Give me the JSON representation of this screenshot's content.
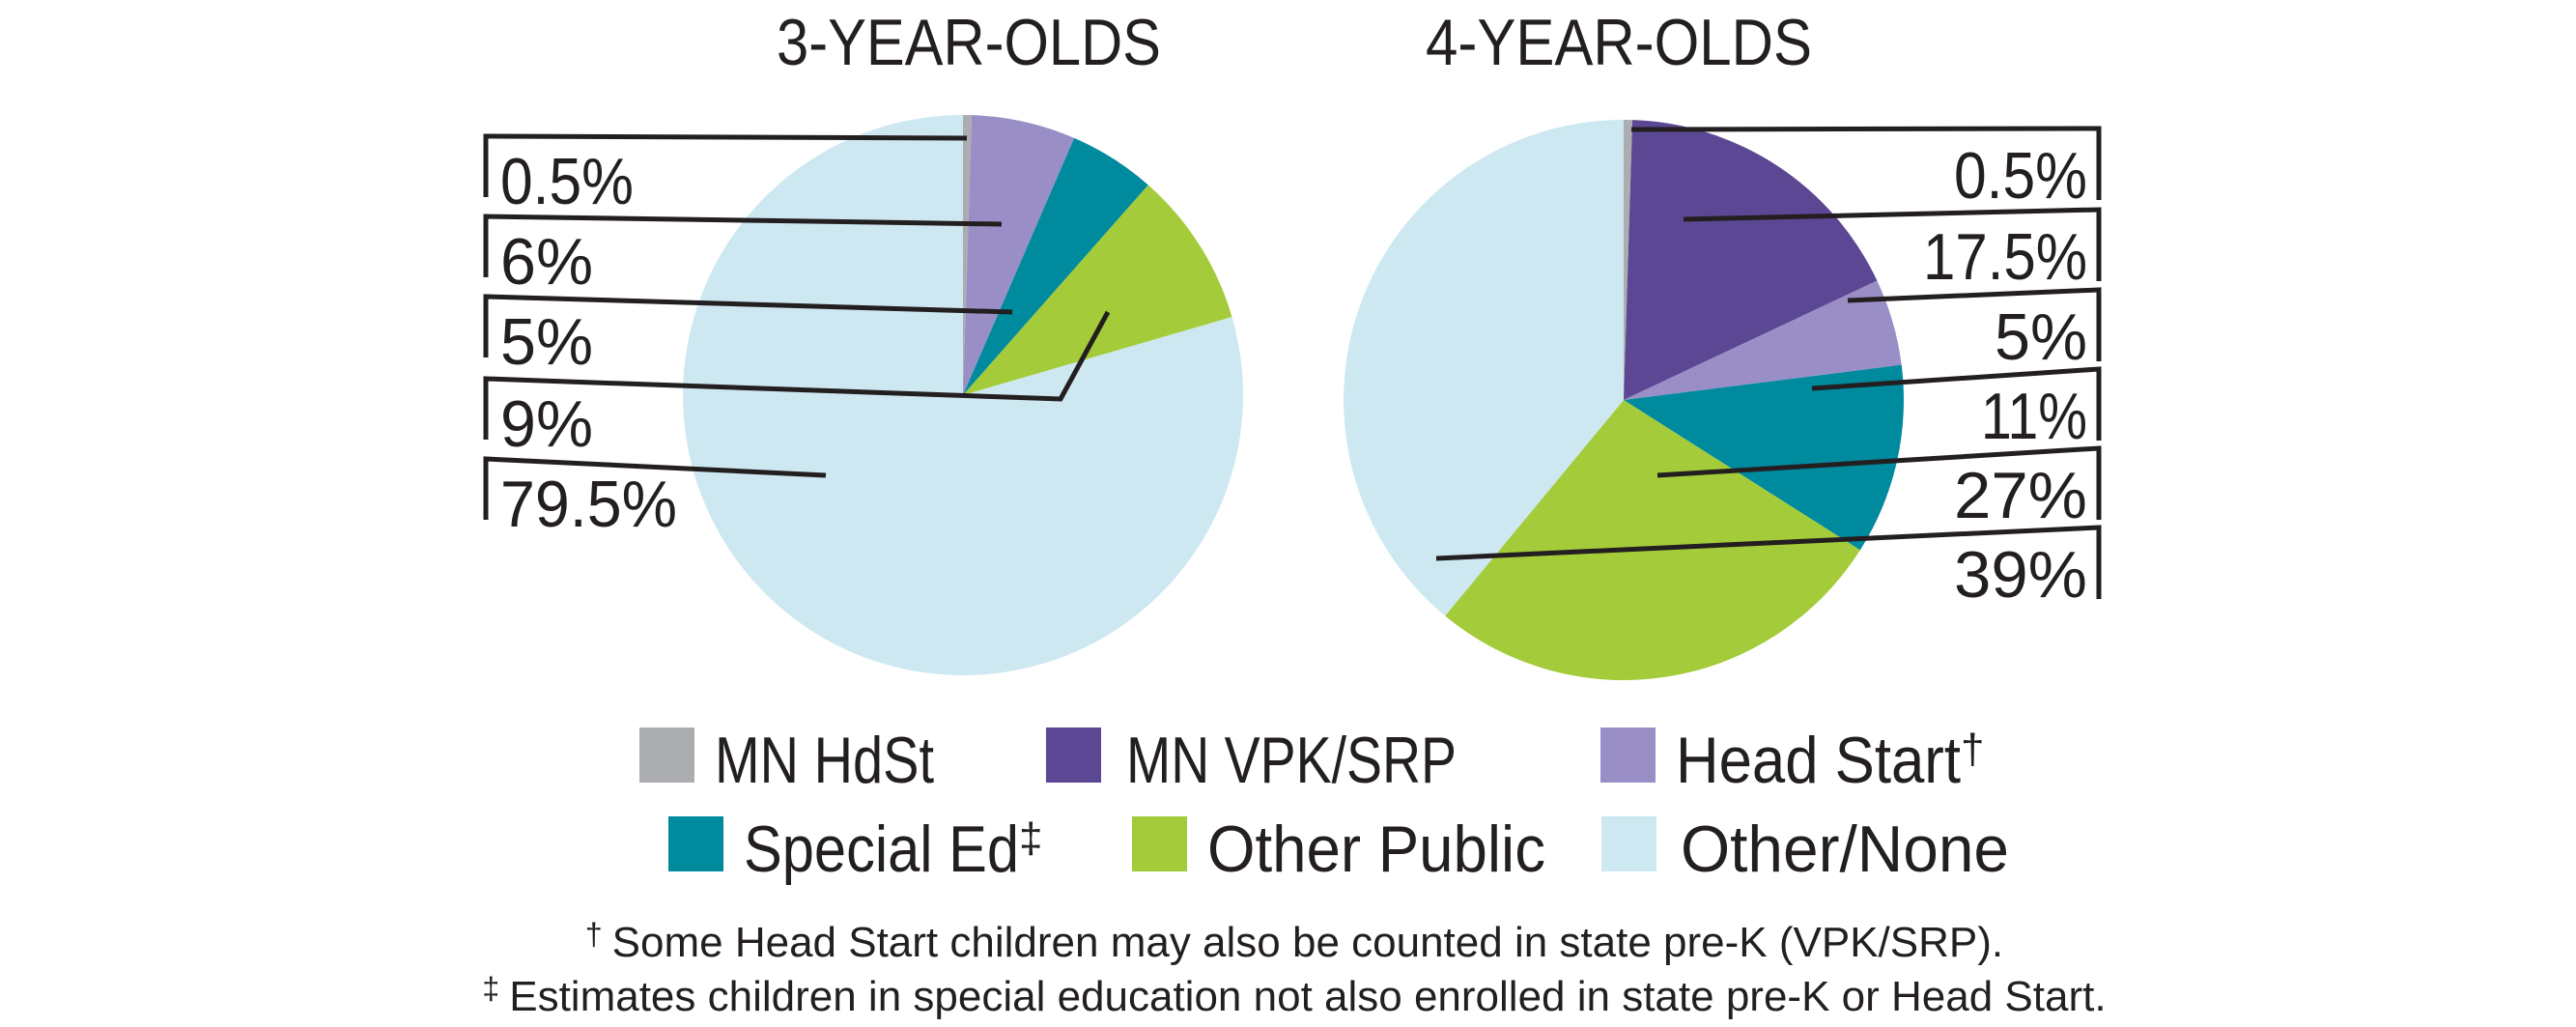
{
  "figure": {
    "background": "#ffffff",
    "text_color": "#231f20",
    "line_color": "#231f20"
  },
  "chart_data": [
    {
      "type": "pie",
      "title": "3-YEAR-OLDS",
      "unit": "percent",
      "start_angle_deg": 0,
      "direction": "clockwise",
      "legend_position": "bottom",
      "slices": [
        {
          "label": "MN HdSt",
          "value": 0.5,
          "display": "0.5%",
          "color": "#acadb0"
        },
        {
          "label": "Head Start",
          "value": 6,
          "display": "6%",
          "color": "#998fc6"
        },
        {
          "label": "Special Ed",
          "value": 5,
          "display": "5%",
          "color": "#008a9e"
        },
        {
          "label": "Other Public",
          "value": 9,
          "display": "9%",
          "color": "#a4cb39"
        },
        {
          "label": "Other/None",
          "value": 79.5,
          "display": "79.5%",
          "color": "#cde8f1"
        }
      ]
    },
    {
      "type": "pie",
      "title": "4-YEAR-OLDS",
      "unit": "percent",
      "start_angle_deg": 0,
      "direction": "clockwise",
      "legend_position": "bottom",
      "slices": [
        {
          "label": "MN HdSt",
          "value": 0.5,
          "display": "0.5%",
          "color": "#acadb0"
        },
        {
          "label": "MN VPK/SRP",
          "value": 17.5,
          "display": "17.5%",
          "color": "#5b4793"
        },
        {
          "label": "Head Start",
          "value": 5,
          "display": "5%",
          "color": "#998fc6"
        },
        {
          "label": "Special Ed",
          "value": 11,
          "display": "11%",
          "color": "#008a9e"
        },
        {
          "label": "Other Public",
          "value": 27,
          "display": "27%",
          "color": "#a4cb39"
        },
        {
          "label": "Other/None",
          "value": 39,
          "display": "39%",
          "color": "#cde8f1"
        }
      ]
    }
  ],
  "legend": {
    "items": [
      {
        "label": "MN HdSt",
        "sup": "",
        "color": "#acadb0"
      },
      {
        "label": "MN VPK/SRP",
        "sup": "",
        "color": "#5b4793"
      },
      {
        "label": "Head Start",
        "sup": "†",
        "color": "#998fc6"
      },
      {
        "label": "Special Ed",
        "sup": "‡",
        "color": "#008a9e"
      },
      {
        "label": "Other Public",
        "sup": "",
        "color": "#a4cb39"
      },
      {
        "label": "Other/None",
        "sup": "",
        "color": "#cde8f1"
      }
    ]
  },
  "footnotes": [
    {
      "symbol": "†",
      "text": "Some Head Start children may also be counted in state pre-K (VPK/SRP)."
    },
    {
      "symbol": "‡",
      "text": "Estimates children in special education not also enrolled in state pre-K or Head Start."
    }
  ]
}
